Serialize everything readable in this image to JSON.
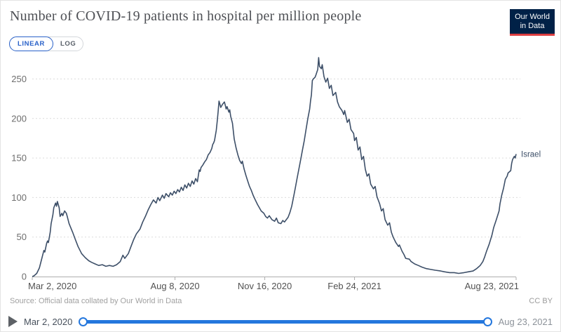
{
  "header": {
    "title": "Number of COVID-19 patients in hospital per million people",
    "logo_line1": "Our World",
    "logo_line2": "in Data"
  },
  "controls": {
    "linear_label": "LINEAR",
    "log_label": "LOG",
    "active_scale": "LINEAR"
  },
  "footer": {
    "source": "Source: Official data collated by Our World in Data",
    "license": "CC BY"
  },
  "timeline": {
    "start_label": "Mar 2, 2020",
    "end_label": "Aug 23, 2021",
    "track_color": "#2477dd"
  },
  "colors": {
    "series": "#3d4f68",
    "accent_blue": "#2a62c9",
    "slider_blue": "#2477dd",
    "logo_bg": "#002147",
    "logo_red": "#dc3e41"
  },
  "chart_data": {
    "type": "line",
    "title": "Number of COVID-19 patients in hospital per million people",
    "xlabel": "",
    "ylabel": "",
    "grid": "horizontal-dashed",
    "legend_position": "end-of-line-label",
    "y_ticks": [
      0,
      50,
      100,
      150,
      200,
      250
    ],
    "ylim": [
      0,
      280
    ],
    "x_unit": "days since 2020-03-02",
    "xlim_days": [
      0,
      539
    ],
    "x_ticks": [
      {
        "label": "Mar 2, 2020",
        "day": 0
      },
      {
        "label": "Aug 8, 2020",
        "day": 159
      },
      {
        "label": "Nov 16, 2020",
        "day": 259
      },
      {
        "label": "Feb 24, 2021",
        "day": 359
      },
      {
        "label": "Aug 23, 2021",
        "day": 539
      }
    ],
    "series": [
      {
        "name": "Israel",
        "color": "#3d4f68",
        "points": [
          [
            0,
            0
          ],
          [
            2,
            1
          ],
          [
            5,
            4
          ],
          [
            8,
            11
          ],
          [
            10,
            20
          ],
          [
            12,
            29
          ],
          [
            13,
            33
          ],
          [
            14,
            31
          ],
          [
            16,
            42
          ],
          [
            17,
            45
          ],
          [
            18,
            43
          ],
          [
            20,
            56
          ],
          [
            21,
            67
          ],
          [
            23,
            78
          ],
          [
            24,
            87
          ],
          [
            26,
            93
          ],
          [
            27,
            89
          ],
          [
            28,
            95
          ],
          [
            30,
            87
          ],
          [
            31,
            76
          ],
          [
            33,
            80
          ],
          [
            34,
            77
          ],
          [
            36,
            83
          ],
          [
            38,
            80
          ],
          [
            39,
            76
          ],
          [
            41,
            67
          ],
          [
            45,
            56
          ],
          [
            48,
            47
          ],
          [
            51,
            38
          ],
          [
            55,
            29
          ],
          [
            59,
            24
          ],
          [
            63,
            20
          ],
          [
            66,
            18
          ],
          [
            70,
            16
          ],
          [
            74,
            14
          ],
          [
            78,
            15
          ],
          [
            82,
            13
          ],
          [
            86,
            14
          ],
          [
            90,
            13
          ],
          [
            94,
            15
          ],
          [
            98,
            19
          ],
          [
            101,
            27
          ],
          [
            103,
            23
          ],
          [
            107,
            29
          ],
          [
            110,
            38
          ],
          [
            113,
            47
          ],
          [
            116,
            54
          ],
          [
            120,
            60
          ],
          [
            123,
            69
          ],
          [
            126,
            76
          ],
          [
            129,
            84
          ],
          [
            132,
            91
          ],
          [
            135,
            97
          ],
          [
            138,
            93
          ],
          [
            140,
            100
          ],
          [
            142,
            96
          ],
          [
            145,
            103
          ],
          [
            147,
            99
          ],
          [
            149,
            105
          ],
          [
            152,
            101
          ],
          [
            154,
            106
          ],
          [
            156,
            103
          ],
          [
            158,
            108
          ],
          [
            160,
            105
          ],
          [
            162,
            110
          ],
          [
            164,
            107
          ],
          [
            166,
            113
          ],
          [
            168,
            109
          ],
          [
            170,
            116
          ],
          [
            172,
            112
          ],
          [
            174,
            118
          ],
          [
            176,
            114
          ],
          [
            178,
            121
          ],
          [
            180,
            117
          ],
          [
            182,
            124
          ],
          [
            184,
            120
          ],
          [
            186,
            135
          ],
          [
            187,
            133
          ],
          [
            188,
            138
          ],
          [
            190,
            141
          ],
          [
            192,
            145
          ],
          [
            194,
            148
          ],
          [
            196,
            154
          ],
          [
            198,
            157
          ],
          [
            200,
            162
          ],
          [
            201,
            167
          ],
          [
            202,
            169
          ],
          [
            203,
            172
          ],
          [
            205,
            185
          ],
          [
            206,
            196
          ],
          [
            207,
            208
          ],
          [
            208,
            222
          ],
          [
            209,
            218
          ],
          [
            210,
            214
          ],
          [
            212,
            218
          ],
          [
            214,
            221
          ],
          [
            215,
            217
          ],
          [
            216,
            212
          ],
          [
            217,
            215
          ],
          [
            219,
            208
          ],
          [
            220,
            211
          ],
          [
            221,
            203
          ],
          [
            223,
            194
          ],
          [
            225,
            174
          ],
          [
            227,
            163
          ],
          [
            229,
            154
          ],
          [
            231,
            147
          ],
          [
            233,
            143
          ],
          [
            234,
            146
          ],
          [
            236,
            136
          ],
          [
            238,
            128
          ],
          [
            240,
            121
          ],
          [
            242,
            114
          ],
          [
            244,
            109
          ],
          [
            246,
            103
          ],
          [
            248,
            98
          ],
          [
            251,
            91
          ],
          [
            253,
            87
          ],
          [
            255,
            83
          ],
          [
            258,
            80
          ],
          [
            260,
            76
          ],
          [
            262,
            74
          ],
          [
            264,
            77
          ],
          [
            267,
            72
          ],
          [
            270,
            70
          ],
          [
            272,
            74
          ],
          [
            274,
            68
          ],
          [
            277,
            67
          ],
          [
            279,
            71
          ],
          [
            281,
            69
          ],
          [
            283,
            72
          ],
          [
            285,
            75
          ],
          [
            287,
            81
          ],
          [
            289,
            89
          ],
          [
            291,
            100
          ],
          [
            293,
            112
          ],
          [
            295,
            124
          ],
          [
            297,
            136
          ],
          [
            299,
            148
          ],
          [
            301,
            160
          ],
          [
            303,
            172
          ],
          [
            305,
            186
          ],
          [
            307,
            200
          ],
          [
            309,
            212
          ],
          [
            310,
            222
          ],
          [
            311,
            230
          ],
          [
            312,
            248
          ],
          [
            313,
            250
          ],
          [
            315,
            252
          ],
          [
            316,
            255
          ],
          [
            318,
            262
          ],
          [
            319,
            277
          ],
          [
            320,
            266
          ],
          [
            322,
            263
          ],
          [
            323,
            268
          ],
          [
            325,
            253
          ],
          [
            327,
            246
          ],
          [
            329,
            251
          ],
          [
            331,
            238
          ],
          [
            333,
            242
          ],
          [
            335,
            229
          ],
          [
            338,
            233
          ],
          [
            340,
            221
          ],
          [
            342,
            215
          ],
          [
            345,
            210
          ],
          [
            347,
            205
          ],
          [
            348,
            210
          ],
          [
            351,
            195
          ],
          [
            353,
            199
          ],
          [
            355,
            186
          ],
          [
            358,
            181
          ],
          [
            359,
            172
          ],
          [
            361,
            176
          ],
          [
            363,
            160
          ],
          [
            365,
            164
          ],
          [
            367,
            148
          ],
          [
            369,
            152
          ],
          [
            371,
            136
          ],
          [
            373,
            127
          ],
          [
            375,
            130
          ],
          [
            377,
            117
          ],
          [
            380,
            111
          ],
          [
            382,
            114
          ],
          [
            384,
            101
          ],
          [
            387,
            92
          ],
          [
            389,
            83
          ],
          [
            391,
            86
          ],
          [
            393,
            72
          ],
          [
            396,
            65
          ],
          [
            398,
            68
          ],
          [
            400,
            56
          ],
          [
            402,
            50
          ],
          [
            405,
            43
          ],
          [
            408,
            38
          ],
          [
            409,
            40
          ],
          [
            412,
            32
          ],
          [
            414,
            28
          ],
          [
            416,
            23
          ],
          [
            420,
            22
          ],
          [
            422,
            19
          ],
          [
            426,
            16
          ],
          [
            430,
            14
          ],
          [
            434,
            12
          ],
          [
            439,
            10
          ],
          [
            444,
            9
          ],
          [
            449,
            8
          ],
          [
            455,
            7
          ],
          [
            459,
            6
          ],
          [
            465,
            5
          ],
          [
            470,
            5
          ],
          [
            475,
            4
          ],
          [
            481,
            5
          ],
          [
            486,
            6
          ],
          [
            491,
            7
          ],
          [
            495,
            10
          ],
          [
            497,
            12
          ],
          [
            499,
            14
          ],
          [
            502,
            19
          ],
          [
            504,
            25
          ],
          [
            506,
            32
          ],
          [
            509,
            41
          ],
          [
            512,
            52
          ],
          [
            514,
            62
          ],
          [
            517,
            72
          ],
          [
            520,
            83
          ],
          [
            521,
            92
          ],
          [
            523,
            103
          ],
          [
            525,
            112
          ],
          [
            527,
            123
          ],
          [
            529,
            127
          ],
          [
            530,
            131
          ],
          [
            533,
            134
          ],
          [
            534,
            143
          ],
          [
            535,
            148
          ],
          [
            537,
            152
          ],
          [
            538,
            150
          ],
          [
            539,
            155
          ]
        ]
      }
    ]
  }
}
